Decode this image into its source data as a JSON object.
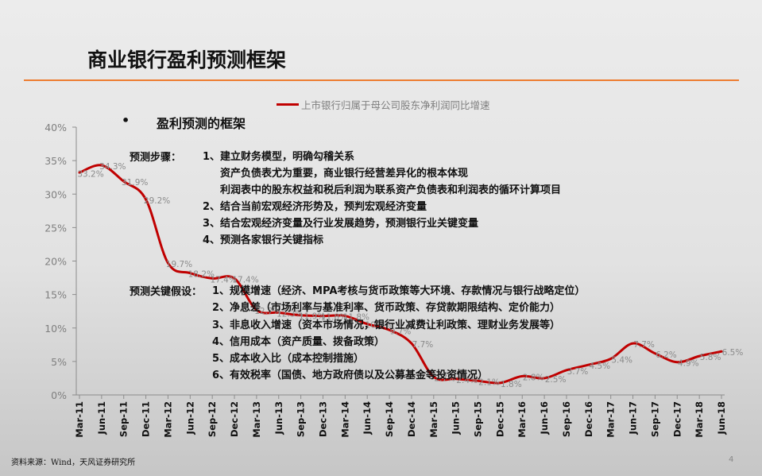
{
  "slide": {
    "title": "商业银行盈利预测框架",
    "accent_color": "#ed7d31",
    "page_number": "4",
    "footer_source": "资料来源：Wind，天风证券研究所"
  },
  "overlay": {
    "bullet_symbol": "•",
    "heading": "盈利预测的框架",
    "steps_label": "预测步骤：",
    "steps": [
      "1、建立财务模型，明确勾稽关系",
      "资产负债表尤为重要，商业银行经营差异化的根本体现",
      "利润表中的股东权益和税后利润为联系资产负债表和利润表的循环计算项目",
      "2、结合当前宏观经济形势及，预判宏观经济变量",
      "3、结合宏观经济变量及行业发展趋势，预测银行业关键变量",
      "4、预测各家银行关键指标"
    ],
    "assumptions_label": "预测关键假设：",
    "assumptions": [
      "1、规模增速（经济、MPA考核与货币政策等大环境、存款情况与银行战略定位）",
      "2、净息差（市场利率与基准利率、货币政策、存贷款期限结构、定价能力）",
      "3、非息收入增速（资本市场情况，银行业减费让利政策、理财业务发展等）",
      "4、信用成本（资产质量、拨备政策）",
      "5、成本收入比（成本控制措施）",
      "6、有效税率（国债、地方政府债以及公募基金等投资情况）"
    ]
  },
  "chart_data": {
    "type": "line",
    "title": "",
    "xlabel": "",
    "ylabel": "",
    "ylim": [
      0,
      40
    ],
    "yticks": [
      "0%",
      "5%",
      "10%",
      "15%",
      "20%",
      "25%",
      "30%",
      "35%",
      "40%"
    ],
    "grid": false,
    "legend_position": "top",
    "categories": [
      "Mar-11",
      "Jun-11",
      "Sep-11",
      "Dec-11",
      "Mar-12",
      "Jun-12",
      "Sep-12",
      "Dec-12",
      "Mar-13",
      "Jun-13",
      "Sep-13",
      "Dec-13",
      "Mar-14",
      "Jun-14",
      "Sep-14",
      "Dec-14",
      "Mar-15",
      "Jun-15",
      "Sep-15",
      "Dec-15",
      "Mar-16",
      "Jun-16",
      "Sep-16",
      "Dec-16",
      "Mar-17",
      "Jun-17",
      "Sep-17",
      "Dec-17",
      "Mar-18",
      "Jun-18"
    ],
    "series": [
      {
        "name": "上市银行归属于母公司股东净利润同比增速",
        "color": "#c00000",
        "values": [
          33.2,
          34.3,
          31.9,
          29.2,
          19.7,
          18.2,
          17.4,
          17.4,
          12.7,
          12.3,
          11.9,
          11.8,
          11.8,
          10.6,
          9.7,
          7.7,
          2.7,
          2.4,
          2.1,
          1.8,
          2.8,
          2.5,
          3.7,
          4.5,
          5.4,
          7.7,
          6.2,
          4.9,
          5.8,
          6.5
        ]
      }
    ],
    "data_labels": [
      "33.2%",
      "34.3%",
      "31.9%",
      "29.2%",
      "19.7%",
      "18.2%",
      "17.4%",
      "17.4%",
      "12.7%",
      "12.3%",
      "11.9%",
      "11.8%",
      "11.8%",
      "10.6%",
      "9.7%",
      "7.7%",
      "2.7%",
      "2.4%",
      "2.1%",
      "1.8%",
      "2.8%",
      "2.5%",
      "3.7%",
      "4.5%",
      "5.4%",
      "7.7%",
      "6.2%",
      "4.9%",
      "5.8%",
      "6.5%"
    ]
  }
}
